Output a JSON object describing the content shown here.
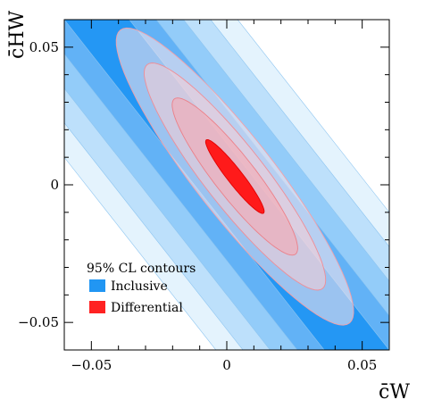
{
  "chart_data": {
    "type": "scatter",
    "title": "",
    "xlabel": "c̄W",
    "ylabel": "c̄HW",
    "xlim": [
      -0.06,
      0.06
    ],
    "ylim": [
      -0.06,
      0.06
    ],
    "x_ticks": [
      -0.05,
      0,
      0.05
    ],
    "y_ticks": [
      -0.05,
      0,
      0.05
    ],
    "x_tick_labels": [
      "−0.05",
      "0",
      "0.05"
    ],
    "y_tick_labels": [
      "−0.05",
      "0",
      "0.05"
    ],
    "grid": false,
    "legend": {
      "title": "95% CL contours",
      "placement": "bottom-left",
      "entries": [
        {
          "label": "Inclusive",
          "color": "#2196f3"
        },
        {
          "label": "Differential",
          "color": "#ff2222"
        }
      ]
    },
    "series": [
      {
        "name": "Inclusive",
        "color": "#2196f3",
        "region_shape": "band",
        "center": [
          0.0,
          0.0
        ],
        "slope_dy_dx": -1.25,
        "half_widths_along_x": [
          0.052,
          0.042,
          0.032,
          0.022,
          0.012
        ]
      },
      {
        "name": "Differential",
        "color": "#ff2222",
        "region_shape": "ellipse",
        "center": [
          0.003,
          0.003
        ],
        "angle_deg": -51.5,
        "semi_axes": [
          [
            0.068,
            0.0145
          ],
          [
            0.052,
            0.011
          ],
          [
            0.036,
            0.0075
          ],
          [
            0.017,
            0.0028
          ]
        ]
      }
    ]
  }
}
